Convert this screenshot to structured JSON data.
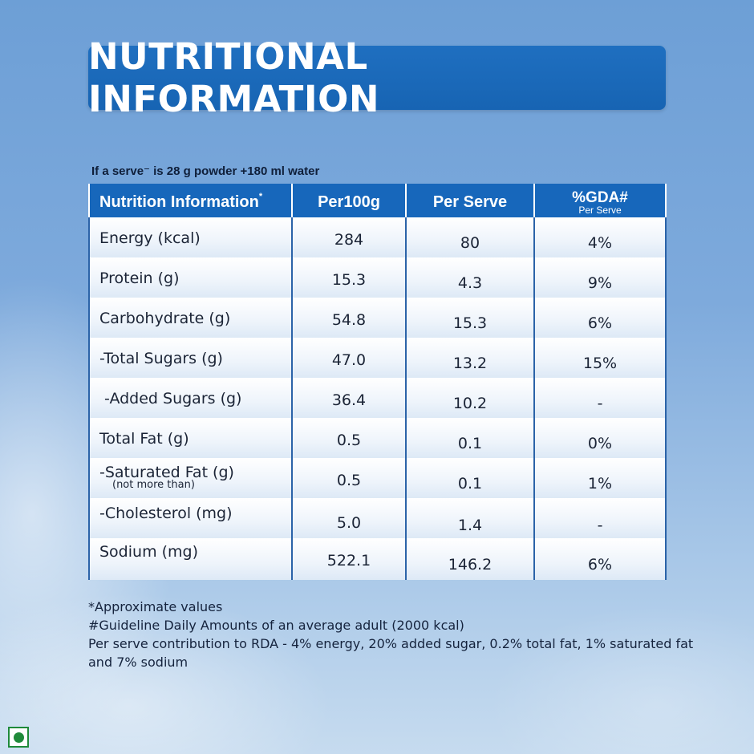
{
  "title": "NUTRITIONAL INFORMATION",
  "serve_note": "If a serve⁻ is 28 g powder +180 ml water",
  "table": {
    "headers": {
      "col0": "Nutrition Information",
      "col0_mark": "*",
      "col1": "Per100g",
      "col2": "Per Serve",
      "col3": "%GDA#",
      "col3_sub": "Per Serve"
    },
    "rows": [
      {
        "name": "Energy (kcal)",
        "per100g": "284",
        "per_serve": "80",
        "gda": "4%"
      },
      {
        "name": "Protein (g)",
        "per100g": "15.3",
        "per_serve": "4.3",
        "gda": "9%"
      },
      {
        "name": "Carbohydrate (g)",
        "per100g": "54.8",
        "per_serve": "15.3",
        "gda": "6%"
      },
      {
        "name": "-Total Sugars (g)",
        "per100g": "47.0",
        "per_serve": "13.2",
        "gda": "15%"
      },
      {
        "name": "-Added Sugars (g)",
        "per100g": "36.4",
        "per_serve": "10.2",
        "gda": "-"
      },
      {
        "name": "Total Fat (g)",
        "per100g": "0.5",
        "per_serve": "0.1",
        "gda": "0%"
      },
      {
        "name": "-Saturated Fat (g)",
        "note": "(not more than)",
        "per100g": "0.5",
        "per_serve": "0.1",
        "gda": "1%"
      },
      {
        "name": "-Cholesterol (mg)",
        "per100g": "5.0",
        "per_serve": "1.4",
        "gda": "-"
      },
      {
        "name": "Sodium (mg)",
        "per100g": "522.1",
        "per_serve": "146.2",
        "gda": "6%"
      }
    ]
  },
  "footnotes": {
    "line1": "*Approximate values",
    "line2": "#Guideline Daily Amounts of an average adult (2000 kcal)",
    "line3": "Per serve contribution to RDA - 4% energy, 20% added sugar, 0.2% total fat, 1% saturated fat",
    "line4": "and 7% sodium"
  },
  "colors": {
    "banner": "#1f6fc0",
    "header": "#1767bb",
    "veg_mark": "#1f8a3a"
  }
}
